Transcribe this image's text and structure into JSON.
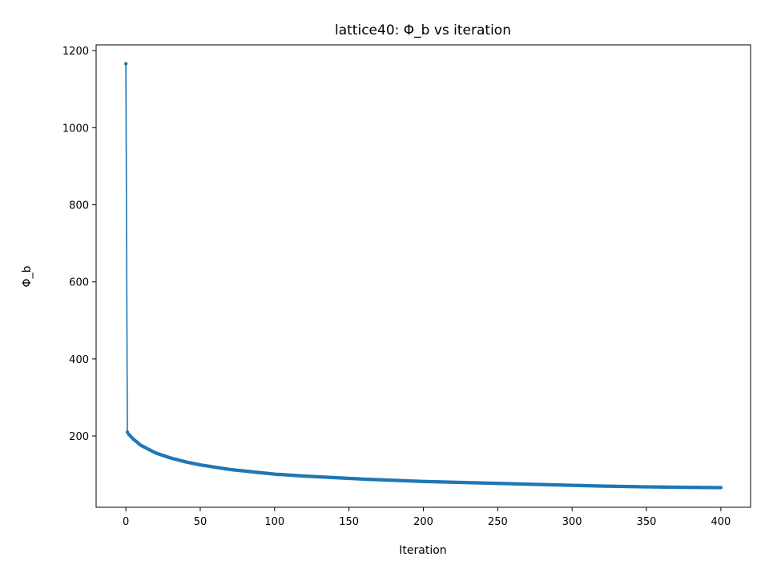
{
  "chart_data": {
    "type": "line",
    "title": "lattice40: Φ_b vs iteration",
    "xlabel": "Iteration",
    "ylabel": "Φ_b",
    "xlim": [
      -20,
      420
    ],
    "ylim": [
      15,
      1215
    ],
    "xticks": [
      0,
      50,
      100,
      150,
      200,
      250,
      300,
      350,
      400
    ],
    "yticks": [
      200,
      400,
      600,
      800,
      1000,
      1200
    ],
    "grid": false,
    "series": [
      {
        "color": "#1f77b4",
        "marker": "circle",
        "x": [
          0,
          1,
          2,
          5,
          10,
          20,
          30,
          40,
          50,
          60,
          70,
          80,
          90,
          100,
          120,
          140,
          160,
          180,
          200,
          220,
          250,
          280,
          300,
          320,
          350,
          370,
          400
        ],
        "y": [
          1166,
          210,
          204,
          192,
          176,
          156,
          143,
          133,
          125,
          119,
          113,
          109,
          105,
          101,
          96,
          92,
          88,
          85,
          82,
          80,
          77,
          74,
          72,
          70,
          68,
          67,
          66
        ]
      }
    ]
  }
}
